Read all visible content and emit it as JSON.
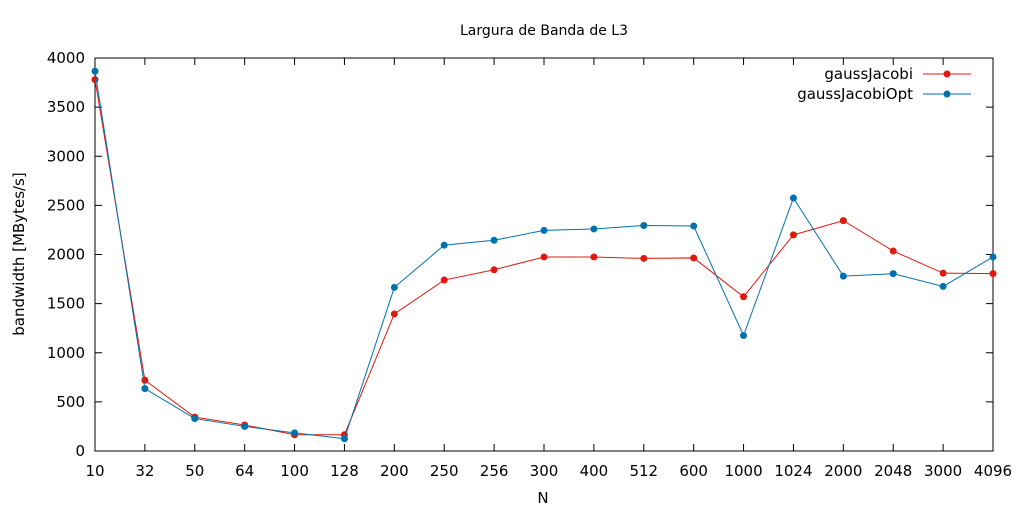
{
  "chart_data": {
    "type": "line",
    "title": "Largura de Banda de L3",
    "xlabel": "N",
    "ylabel": "bandwidth [MBytes/s]",
    "categories": [
      "10",
      "32",
      "50",
      "64",
      "100",
      "128",
      "200",
      "250",
      "256",
      "300",
      "400",
      "512",
      "600",
      "1000",
      "1024",
      "2000",
      "2048",
      "3000",
      "4096"
    ],
    "ylim": [
      0,
      4000
    ],
    "yticks": [
      0,
      500,
      1000,
      1500,
      2000,
      2500,
      3000,
      3500,
      4000
    ],
    "grid": false,
    "legend": "top-right",
    "series": [
      {
        "name": "gaussJacobi",
        "color": "#e0190f",
        "values": [
          3780,
          720,
          345,
          265,
          165,
          165,
          1395,
          1740,
          1845,
          1975,
          1975,
          1960,
          1965,
          1570,
          2200,
          2345,
          2035,
          1810,
          1805
        ]
      },
      {
        "name": "gaussJacobiOpt",
        "color": "#0072ad",
        "values": [
          3865,
          635,
          330,
          250,
          185,
          125,
          1665,
          2095,
          2145,
          2245,
          2260,
          2295,
          2290,
          1175,
          2575,
          1780,
          1805,
          1675,
          1975
        ]
      }
    ]
  }
}
